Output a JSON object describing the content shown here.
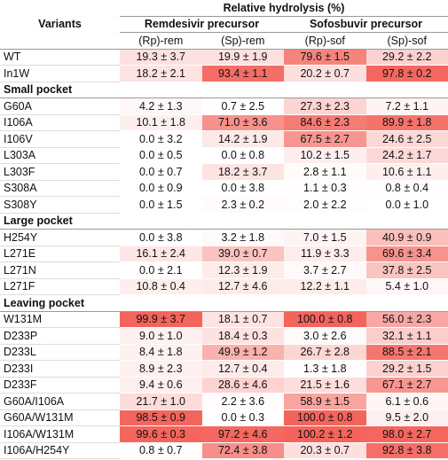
{
  "header": {
    "variants": "Variants",
    "measure": "Relative hydrolysis (%)",
    "groups": [
      "Remdesivir precursor",
      "Sofosbuvir precursor"
    ],
    "subcolumns": [
      "(Rp)-rem",
      "(Sp)-rem",
      "(Rp)-sof",
      "(Sp)-sof"
    ]
  },
  "color_scale": {
    "low": "#ffffff",
    "high": "#f3645c",
    "max": 100
  },
  "top_rows": [
    {
      "variant": "WT",
      "values": [
        "19.3 ± 3.7",
        "19.9 ± 1.9",
        "79.6 ± 1.5",
        "29.2 ± 2.2"
      ]
    },
    {
      "variant": "In1W",
      "values": [
        "18.2 ± 2.1",
        "93.4 ± 1.1",
        "20.2 ± 0.7",
        "97.8 ± 0.2"
      ]
    }
  ],
  "sections": [
    {
      "title": "Small pocket",
      "rows": [
        {
          "variant": "G60A",
          "values": [
            "4.2 ± 1.3",
            "0.7 ± 2.5",
            "27.3 ± 2.3",
            "7.2 ± 1.1"
          ]
        },
        {
          "variant": "I106A",
          "values": [
            "10.1 ± 1.8",
            "71.0 ± 3.6",
            "84.6 ± 2.3",
            "89.9 ± 1.8"
          ]
        },
        {
          "variant": "I106V",
          "values": [
            "0.0 ± 3.2",
            "14.2 ± 1.9",
            "67.5 ± 2.7",
            "24.6 ± 2.5"
          ]
        },
        {
          "variant": "L303A",
          "values": [
            "0.0 ± 0.5",
            "0.0 ± 0.8",
            "10.2 ± 1.5",
            "24.2 ± 1.7"
          ]
        },
        {
          "variant": "L303F",
          "values": [
            "0.0 ± 0.7",
            "18.2 ± 3.7",
            "2.8 ± 1.1",
            "10.6 ± 1.1"
          ]
        },
        {
          "variant": "S308A",
          "values": [
            "0.0 ± 0.9",
            "0.0 ± 3.8",
            "1.1 ± 0.3",
            "0.8 ± 0.4"
          ]
        },
        {
          "variant": "S308Y",
          "values": [
            "0.0 ± 1.5",
            "2.3 ± 0.2",
            "2.0 ± 2.2",
            "0.0 ± 1.0"
          ]
        }
      ]
    },
    {
      "title": "Large pocket",
      "rows": [
        {
          "variant": "H254Y",
          "values": [
            "0.0 ± 3.8",
            "3.2 ± 1.8",
            "7.0 ± 1.5",
            "40.9 ± 0.9"
          ]
        },
        {
          "variant": "L271E",
          "values": [
            "16.1 ± 2.4",
            "39.0 ± 0.7",
            "11.9 ± 3.3",
            "69.6 ± 3.4"
          ]
        },
        {
          "variant": "L271N",
          "values": [
            "0.0 ± 2.1",
            "12.3 ± 1.9",
            "3.7 ± 2.7",
            "37.8 ± 2.5"
          ]
        },
        {
          "variant": "L271F",
          "values": [
            "10.8 ± 0.4",
            "12.7 ± 4.6",
            "12.2 ± 1.1",
            "5.4 ± 1.0"
          ]
        }
      ]
    },
    {
      "title": "Leaving pocket",
      "rows": [
        {
          "variant": "W131M",
          "values": [
            "99.9 ± 3.7",
            "18.1 ± 0.7",
            "100.0 ± 0.8",
            "56.0 ± 2.3"
          ]
        },
        {
          "variant": "D233P",
          "values": [
            "9.0 ± 1.0",
            "18.4 ± 0.3",
            "3.0 ± 2.6",
            "32.1 ± 1.1"
          ]
        },
        {
          "variant": "D233L",
          "values": [
            "8.4 ± 1.8",
            "49.9 ± 1.2",
            "26.7 ± 2.8",
            "88.5 ± 2.1"
          ]
        },
        {
          "variant": "D233I",
          "values": [
            "8.9 ± 2.3",
            "12.7 ± 0.4",
            "1.3 ± 1.8",
            "29.2 ± 1.5"
          ]
        },
        {
          "variant": "D233F",
          "values": [
            "9.4 ± 0.6",
            "28.6 ± 4.6",
            "21.5 ± 1.6",
            "67.1 ± 2.7"
          ]
        },
        {
          "variant": "G60A/I106A",
          "values": [
            "21.7 ± 1.0",
            "2.2 ± 3.6",
            "58.9 ± 1.5",
            "6.1 ± 0.6"
          ]
        },
        {
          "variant": "G60A/W131M",
          "values": [
            "98.5 ± 0.9",
            "0.0 ± 0.3",
            "100.0 ± 0.8",
            "9.5 ± 2.0"
          ]
        },
        {
          "variant": "I106A/W131M",
          "values": [
            "99.6 ± 0.3",
            "97.2 ± 4.6",
            "100.2 ± 1.2",
            "98.0 ± 2.7"
          ]
        },
        {
          "variant": "I106A/H254Y",
          "values": [
            "0.8 ± 0.7",
            "72.4 ± 3.8",
            "20.3 ± 0.7",
            "92.8 ± 3.8"
          ]
        }
      ]
    }
  ]
}
